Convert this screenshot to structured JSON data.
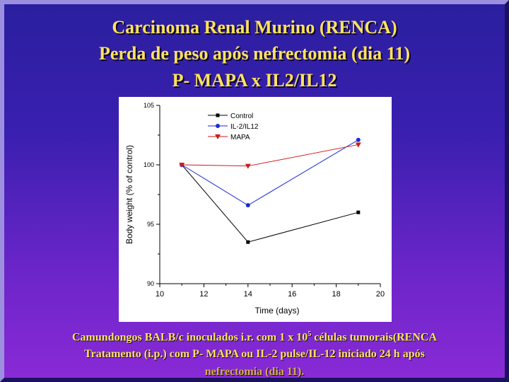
{
  "slide": {
    "title_line1": "Carcinoma Renal Murino (RENCA)",
    "title_line2": "Perda de peso após nefrectomia (dia 11)",
    "title_line3": "P- MAPA x IL2/IL12",
    "caption_line1_pre": "Camundongos BALB/c inoculados i.r. com 1 x 10",
    "caption_line1_sup": "5",
    "caption_line1_post": "  células tumorais(RENCA",
    "caption_line2": "Tratamento  (i.p.) com P- MAPA ou IL-2 pulse/IL-12  iniciado 24 h após",
    "caption_line3": "nefrectomia (dia 11)."
  },
  "chart_data": {
    "type": "line",
    "xlabel": "Time (days)",
    "ylabel": "Body weight (% of control)",
    "xlim": [
      10,
      20
    ],
    "ylim": [
      90,
      105
    ],
    "xticks": [
      10,
      12,
      14,
      16,
      18,
      20
    ],
    "yticks": [
      90,
      95,
      100,
      105
    ],
    "legend_position": "top-left",
    "series": [
      {
        "name": "Control",
        "color": "#000000",
        "marker": "square",
        "x": [
          11,
          14,
          19
        ],
        "y": [
          100,
          93.5,
          96
        ]
      },
      {
        "name": "IL-2/IL12",
        "color": "#1a2bd6",
        "marker": "circle",
        "x": [
          11,
          14,
          19
        ],
        "y": [
          100,
          96.6,
          102.1
        ]
      },
      {
        "name": "MAPA",
        "color": "#d21a1a",
        "marker": "triangle-down",
        "x": [
          11,
          14,
          19
        ],
        "y": [
          100,
          99.9,
          101.7
        ]
      }
    ]
  }
}
